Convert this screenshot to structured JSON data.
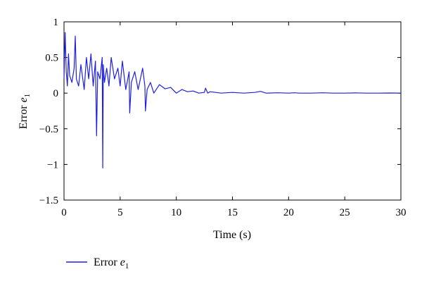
{
  "chart_data": {
    "type": "line",
    "xlabel": "Time (s)",
    "ylabel_text": "Error ",
    "ylabel_var": "e",
    "ylabel_sub": "1",
    "xlim": [
      0,
      30
    ],
    "ylim": [
      -1.5,
      1
    ],
    "x_ticks": [
      0,
      5,
      10,
      15,
      20,
      25,
      30
    ],
    "y_ticks": [
      1,
      0.5,
      0,
      -0.5,
      -1,
      -1.5
    ],
    "y_tick_labels": [
      "1",
      "0.5",
      "0",
      "−0.5",
      "−1",
      "−1.5"
    ],
    "grid": false,
    "legend": {
      "position": "bottom-left",
      "entries": [
        {
          "text": "Error ",
          "var": "e",
          "sub": "1"
        }
      ]
    },
    "series": [
      {
        "color": "#1f1fe0",
        "x": [
          0,
          0.1,
          0.2,
          0.3,
          0.4,
          0.5,
          0.7,
          0.9,
          1.0,
          1.1,
          1.3,
          1.5,
          1.8,
          2.0,
          2.2,
          2.4,
          2.6,
          2.8,
          2.9,
          3.0,
          3.2,
          3.4,
          3.45,
          3.5,
          3.6,
          3.8,
          4.0,
          4.2,
          4.5,
          4.8,
          5.0,
          5.2,
          5.5,
          5.8,
          5.85,
          6.0,
          6.3,
          6.6,
          7.0,
          7.2,
          7.25,
          7.4,
          7.7,
          8.0,
          8.5,
          9.0,
          9.5,
          10.0,
          10.5,
          11.0,
          11.5,
          12.0,
          12.5,
          12.6,
          12.8,
          13.0,
          14.0,
          15.0,
          16.0,
          17.0,
          17.5,
          18.0,
          19.0,
          20.0,
          20.5,
          21.0,
          22.0,
          23.0,
          24.0,
          25.0,
          26.0,
          27.0,
          28.0,
          29.0,
          30.0
        ],
        "y": [
          0.2,
          0.85,
          0.3,
          0.1,
          0.55,
          0.25,
          0.15,
          0.35,
          0.8,
          0.2,
          0.1,
          0.4,
          0.05,
          0.5,
          0.2,
          0.55,
          0.1,
          0.45,
          -0.6,
          0.3,
          0.2,
          0.5,
          -1.05,
          0.4,
          0.15,
          0.35,
          0.1,
          0.5,
          0.2,
          0.35,
          0.1,
          0.45,
          0.05,
          0.3,
          -0.28,
          0.15,
          0.3,
          0.05,
          0.35,
          0.1,
          -0.25,
          0.05,
          0.15,
          0.0,
          0.12,
          0.06,
          0.08,
          0.0,
          0.05,
          0.02,
          0.03,
          0.0,
          0.01,
          0.07,
          0.0,
          0.02,
          0.0,
          0.01,
          0.0,
          0.01,
          0.025,
          0.0,
          0.005,
          0.0,
          0.005,
          0.0,
          0.0,
          0.005,
          0.0,
          0.0,
          0.003,
          0.0,
          0.0,
          0.002,
          0.0
        ]
      }
    ]
  }
}
